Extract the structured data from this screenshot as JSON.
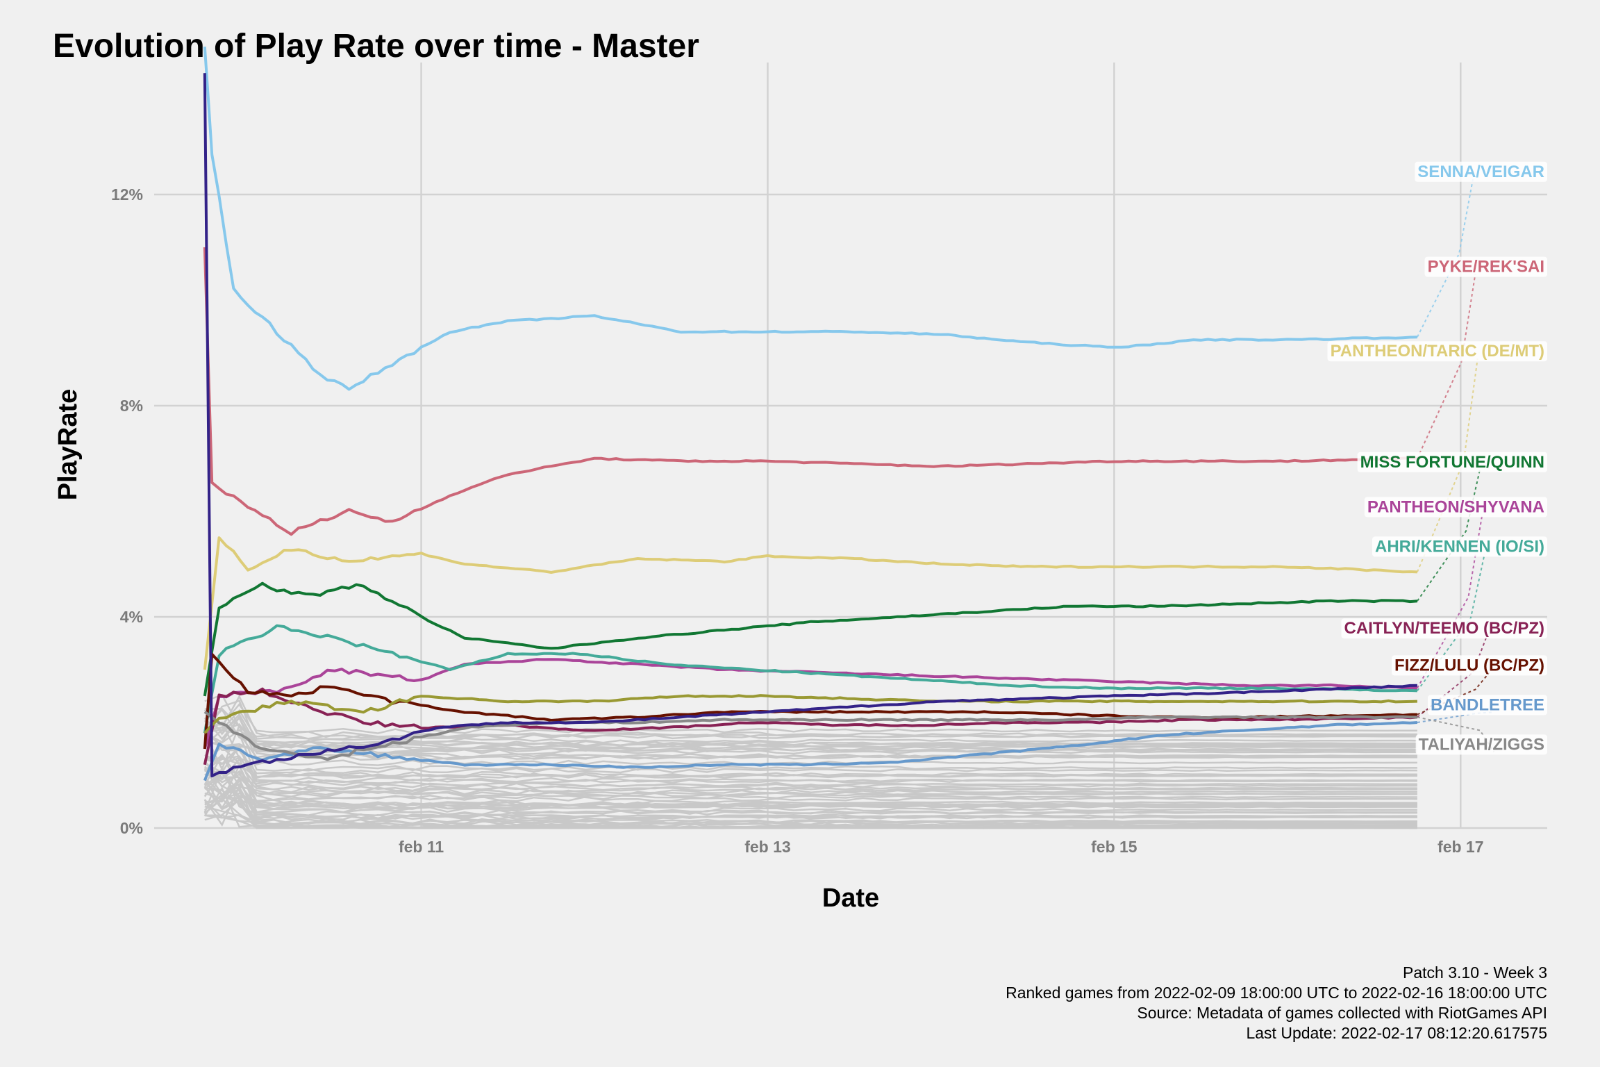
{
  "chart_data": {
    "type": "line",
    "title": "Evolution of Play Rate over time - Master",
    "xlabel": "Date",
    "ylabel": "PlayRate",
    "x_ticks": [
      {
        "date": "2022-02-11",
        "label": "feb 11"
      },
      {
        "date": "2022-02-13",
        "label": "feb 13"
      },
      {
        "date": "2022-02-15",
        "label": "feb 15"
      },
      {
        "date": "2022-02-17",
        "label": "feb 17"
      }
    ],
    "y_ticks": [
      {
        "value": 0,
        "label": "0%"
      },
      {
        "value": 4,
        "label": "4%"
      },
      {
        "value": 8,
        "label": "8%"
      },
      {
        "value": 12,
        "label": "12%"
      }
    ],
    "xlim": [
      "2022-02-09 11:00",
      "2022-02-17 12:00"
    ],
    "ylim": [
      0,
      14.5
    ],
    "grid": true,
    "legend": "direct labels at right end of lines",
    "background_series_color": "#c8c8c8",
    "series": [
      {
        "name": "SENNA/VEIGAR",
        "color": "#86c8ec",
        "label_y": 12.45,
        "start": 14.8,
        "points": [
          [
            "2022-02-09 18:00",
            14.8
          ],
          [
            "2022-02-09 19:00",
            12.8
          ],
          [
            "2022-02-09 22:00",
            10.2
          ],
          [
            "2022-02-10 04:00",
            9.4
          ],
          [
            "2022-02-10 10:00",
            8.6
          ],
          [
            "2022-02-10 14:00",
            8.3
          ],
          [
            "2022-02-10 20:00",
            8.8
          ],
          [
            "2022-02-11 04:00",
            9.4
          ],
          [
            "2022-02-11 12:00",
            9.6
          ],
          [
            "2022-02-12 00:00",
            9.7
          ],
          [
            "2022-02-12 12:00",
            9.4
          ],
          [
            "2022-02-13 00:00",
            9.4
          ],
          [
            "2022-02-13 12:00",
            9.4
          ],
          [
            "2022-02-14 00:00",
            9.35
          ],
          [
            "2022-02-14 12:00",
            9.2
          ],
          [
            "2022-02-15 00:00",
            9.1
          ],
          [
            "2022-02-15 12:00",
            9.25
          ],
          [
            "2022-02-16 00:00",
            9.25
          ],
          [
            "2022-02-16 18:00",
            9.3
          ]
        ]
      },
      {
        "name": "PYKE/REK'SAI",
        "color": "#cc6677",
        "label_y": 10.65,
        "start": 11.0,
        "points": [
          [
            "2022-02-09 18:00",
            11.0
          ],
          [
            "2022-02-09 19:00",
            6.5
          ],
          [
            "2022-02-10 00:00",
            6.1
          ],
          [
            "2022-02-10 06:00",
            5.6
          ],
          [
            "2022-02-10 14:00",
            6.0
          ],
          [
            "2022-02-10 20:00",
            5.8
          ],
          [
            "2022-02-11 04:00",
            6.3
          ],
          [
            "2022-02-11 12:00",
            6.7
          ],
          [
            "2022-02-12 00:00",
            7.0
          ],
          [
            "2022-02-12 12:00",
            6.95
          ],
          [
            "2022-02-13 00:00",
            6.95
          ],
          [
            "2022-02-13 12:00",
            6.9
          ],
          [
            "2022-02-14 00:00",
            6.85
          ],
          [
            "2022-02-14 12:00",
            6.9
          ],
          [
            "2022-02-15 00:00",
            6.95
          ],
          [
            "2022-02-15 12:00",
            6.95
          ],
          [
            "2022-02-16 00:00",
            6.95
          ],
          [
            "2022-02-16 18:00",
            7.0
          ]
        ]
      },
      {
        "name": "PANTHEON/TARIC (DE/MT)",
        "color": "#ddcc77",
        "label_y": 9.05,
        "start": 3.0,
        "points": [
          [
            "2022-02-09 18:00",
            3.0
          ],
          [
            "2022-02-09 20:00",
            5.5
          ],
          [
            "2022-02-10 00:00",
            4.9
          ],
          [
            "2022-02-10 06:00",
            5.3
          ],
          [
            "2022-02-10 14:00",
            5.05
          ],
          [
            "2022-02-11 00:00",
            5.2
          ],
          [
            "2022-02-11 06:00",
            5.0
          ],
          [
            "2022-02-11 18:00",
            4.85
          ],
          [
            "2022-02-12 06:00",
            5.1
          ],
          [
            "2022-02-12 18:00",
            5.05
          ],
          [
            "2022-02-13 00:00",
            5.15
          ],
          [
            "2022-02-13 12:00",
            5.1
          ],
          [
            "2022-02-14 00:00",
            5.0
          ],
          [
            "2022-02-14 12:00",
            4.95
          ],
          [
            "2022-02-15 00:00",
            4.95
          ],
          [
            "2022-02-15 12:00",
            4.95
          ],
          [
            "2022-02-16 00:00",
            4.95
          ],
          [
            "2022-02-16 18:00",
            4.85
          ]
        ]
      },
      {
        "name": "MISS FORTUNE/QUINN",
        "color": "#117733",
        "label_y": 6.95,
        "start": 2.5,
        "points": [
          [
            "2022-02-09 18:00",
            2.5
          ],
          [
            "2022-02-09 20:00",
            4.2
          ],
          [
            "2022-02-10 02:00",
            4.6
          ],
          [
            "2022-02-10 08:00",
            4.4
          ],
          [
            "2022-02-10 16:00",
            4.6
          ],
          [
            "2022-02-11 00:00",
            4.0
          ],
          [
            "2022-02-11 06:00",
            3.6
          ],
          [
            "2022-02-11 18:00",
            3.4
          ],
          [
            "2022-02-12 06:00",
            3.6
          ],
          [
            "2022-02-12 18:00",
            3.75
          ],
          [
            "2022-02-13 06:00",
            3.9
          ],
          [
            "2022-02-13 18:00",
            4.0
          ],
          [
            "2022-02-14 06:00",
            4.1
          ],
          [
            "2022-02-14 18:00",
            4.2
          ],
          [
            "2022-02-15 06:00",
            4.2
          ],
          [
            "2022-02-15 18:00",
            4.25
          ],
          [
            "2022-02-16 06:00",
            4.3
          ],
          [
            "2022-02-16 18:00",
            4.3
          ]
        ]
      },
      {
        "name": "PANTHEON/SHYVANA",
        "color": "#aa4499",
        "label_y": 6.1,
        "start": 1.5,
        "points": [
          [
            "2022-02-09 18:00",
            1.5
          ],
          [
            "2022-02-09 20:00",
            2.5
          ],
          [
            "2022-02-10 04:00",
            2.6
          ],
          [
            "2022-02-10 12:00",
            3.0
          ],
          [
            "2022-02-11 00:00",
            2.8
          ],
          [
            "2022-02-11 06:00",
            3.1
          ],
          [
            "2022-02-11 18:00",
            3.2
          ],
          [
            "2022-02-12 06:00",
            3.1
          ],
          [
            "2022-02-12 18:00",
            3.0
          ],
          [
            "2022-02-13 06:00",
            2.95
          ],
          [
            "2022-02-13 18:00",
            2.9
          ],
          [
            "2022-02-14 06:00",
            2.85
          ],
          [
            "2022-02-14 18:00",
            2.8
          ],
          [
            "2022-02-15 06:00",
            2.75
          ],
          [
            "2022-02-15 18:00",
            2.7
          ],
          [
            "2022-02-16 06:00",
            2.7
          ],
          [
            "2022-02-16 18:00",
            2.65
          ]
        ]
      },
      {
        "name": "AHRI/KENNEN (IO/SI)",
        "color": "#44aa99",
        "label_y": 5.35,
        "start": 1.8,
        "points": [
          [
            "2022-02-09 18:00",
            1.8
          ],
          [
            "2022-02-09 20:00",
            3.3
          ],
          [
            "2022-02-10 04:00",
            3.8
          ],
          [
            "2022-02-10 12:00",
            3.6
          ],
          [
            "2022-02-10 20:00",
            3.3
          ],
          [
            "2022-02-11 04:00",
            3.0
          ],
          [
            "2022-02-11 12:00",
            3.3
          ],
          [
            "2022-02-11 22:00",
            3.3
          ],
          [
            "2022-02-12 10:00",
            3.1
          ],
          [
            "2022-02-12 22:00",
            3.0
          ],
          [
            "2022-02-13 10:00",
            2.9
          ],
          [
            "2022-02-13 22:00",
            2.8
          ],
          [
            "2022-02-14 10:00",
            2.7
          ],
          [
            "2022-02-14 22:00",
            2.65
          ],
          [
            "2022-02-15 10:00",
            2.65
          ],
          [
            "2022-02-15 22:00",
            2.65
          ],
          [
            "2022-02-16 18:00",
            2.6
          ]
        ]
      },
      {
        "name": "CAITLYN/TEEMO (BC/PZ)",
        "color": "#882255",
        "label_y": 3.8,
        "start": 1.2,
        "points": [
          [
            "2022-02-09 18:00",
            1.2
          ],
          [
            "2022-02-09 20:00",
            2.5
          ],
          [
            "2022-02-10 02:00",
            2.6
          ],
          [
            "2022-02-10 08:00",
            2.3
          ],
          [
            "2022-02-10 16:00",
            2.0
          ],
          [
            "2022-02-11 00:00",
            1.9
          ],
          [
            "2022-02-11 12:00",
            1.95
          ],
          [
            "2022-02-11 22:00",
            1.85
          ],
          [
            "2022-02-12 10:00",
            1.9
          ],
          [
            "2022-02-12 22:00",
            2.0
          ],
          [
            "2022-02-13 10:00",
            1.95
          ],
          [
            "2022-02-13 22:00",
            1.95
          ],
          [
            "2022-02-14 10:00",
            2.0
          ],
          [
            "2022-02-14 22:00",
            2.0
          ],
          [
            "2022-02-15 10:00",
            2.05
          ],
          [
            "2022-02-15 22:00",
            2.05
          ],
          [
            "2022-02-16 18:00",
            2.1
          ]
        ]
      },
      {
        "name": "FIZZ/LULU (BC/PZ)",
        "color": "#661100",
        "label_y": 3.1,
        "start": 1.5,
        "points": [
          [
            "2022-02-09 18:00",
            1.5
          ],
          [
            "2022-02-09 19:00",
            3.3
          ],
          [
            "2022-02-10 00:00",
            2.6
          ],
          [
            "2022-02-10 06:00",
            2.5
          ],
          [
            "2022-02-10 12:00",
            2.7
          ],
          [
            "2022-02-10 20:00",
            2.4
          ],
          [
            "2022-02-11 06:00",
            2.2
          ],
          [
            "2022-02-11 18:00",
            2.05
          ],
          [
            "2022-02-12 06:00",
            2.1
          ],
          [
            "2022-02-12 18:00",
            2.2
          ],
          [
            "2022-02-13 06:00",
            2.2
          ],
          [
            "2022-02-13 18:00",
            2.2
          ],
          [
            "2022-02-14 06:00",
            2.2
          ],
          [
            "2022-02-14 18:00",
            2.15
          ],
          [
            "2022-02-15 06:00",
            2.1
          ],
          [
            "2022-02-15 18:00",
            2.1
          ],
          [
            "2022-02-16 18:00",
            2.15
          ]
        ]
      },
      {
        "name": "BANDLETREE",
        "color": "#6699cc",
        "label_y": 2.35,
        "start": 0.9,
        "points": [
          [
            "2022-02-09 18:00",
            0.9
          ],
          [
            "2022-02-09 20:00",
            1.6
          ],
          [
            "2022-02-10 02:00",
            1.3
          ],
          [
            "2022-02-10 10:00",
            1.5
          ],
          [
            "2022-02-10 20:00",
            1.35
          ],
          [
            "2022-02-11 06:00",
            1.2
          ],
          [
            "2022-02-11 18:00",
            1.2
          ],
          [
            "2022-02-12 06:00",
            1.15
          ],
          [
            "2022-02-12 18:00",
            1.2
          ],
          [
            "2022-02-13 06:00",
            1.2
          ],
          [
            "2022-02-13 18:00",
            1.25
          ],
          [
            "2022-02-14 06:00",
            1.4
          ],
          [
            "2022-02-14 18:00",
            1.55
          ],
          [
            "2022-02-15 06:00",
            1.75
          ],
          [
            "2022-02-15 18:00",
            1.85
          ],
          [
            "2022-02-16 06:00",
            1.95
          ],
          [
            "2022-02-16 18:00",
            2.0
          ]
        ]
      },
      {
        "name": "TALIYAH/ZIGGS",
        "color": "#888888",
        "label_y": 1.6,
        "start": 2.2,
        "points": [
          [
            "2022-02-09 18:00",
            2.2
          ],
          [
            "2022-02-09 20:00",
            2.0
          ],
          [
            "2022-02-10 02:00",
            1.5
          ],
          [
            "2022-02-10 10:00",
            1.3
          ],
          [
            "2022-02-10 20:00",
            1.6
          ],
          [
            "2022-02-11 06:00",
            1.9
          ],
          [
            "2022-02-11 18:00",
            2.0
          ],
          [
            "2022-02-12 06:00",
            2.0
          ],
          [
            "2022-02-12 18:00",
            2.05
          ],
          [
            "2022-02-13 06:00",
            2.05
          ],
          [
            "2022-02-13 18:00",
            2.05
          ],
          [
            "2022-02-14 06:00",
            2.05
          ],
          [
            "2022-02-14 18:00",
            2.05
          ],
          [
            "2022-02-15 06:00",
            2.1
          ],
          [
            "2022-02-15 18:00",
            2.1
          ],
          [
            "2022-02-16 18:00",
            2.1
          ]
        ]
      },
      {
        "name": "",
        "color": "#999933",
        "label_y": null,
        "start": 1.8,
        "points": [
          [
            "2022-02-09 18:00",
            1.8
          ],
          [
            "2022-02-09 20:00",
            2.1
          ],
          [
            "2022-02-10 06:00",
            2.4
          ],
          [
            "2022-02-10 16:00",
            2.2
          ],
          [
            "2022-02-11 00:00",
            2.5
          ],
          [
            "2022-02-11 12:00",
            2.4
          ],
          [
            "2022-02-12 00:00",
            2.4
          ],
          [
            "2022-02-12 12:00",
            2.5
          ],
          [
            "2022-02-13 00:00",
            2.5
          ],
          [
            "2022-02-13 12:00",
            2.45
          ],
          [
            "2022-02-14 00:00",
            2.4
          ],
          [
            "2022-02-14 12:00",
            2.4
          ],
          [
            "2022-02-15 00:00",
            2.4
          ],
          [
            "2022-02-15 12:00",
            2.4
          ],
          [
            "2022-02-16 18:00",
            2.4
          ]
        ]
      },
      {
        "name": "",
        "color": "#332288",
        "label_y": null,
        "start": 14.3,
        "points": [
          [
            "2022-02-09 18:00",
            14.3
          ],
          [
            "2022-02-09 19:00",
            1.0
          ],
          [
            "2022-02-10 00:00",
            1.2
          ],
          [
            "2022-02-10 08:00",
            1.4
          ],
          [
            "2022-02-10 18:00",
            1.6
          ],
          [
            "2022-02-11 02:00",
            1.9
          ],
          [
            "2022-02-11 12:00",
            2.0
          ],
          [
            "2022-02-12 00:00",
            2.0
          ],
          [
            "2022-02-12 12:00",
            2.1
          ],
          [
            "2022-02-13 00:00",
            2.2
          ],
          [
            "2022-02-13 12:00",
            2.3
          ],
          [
            "2022-02-14 00:00",
            2.4
          ],
          [
            "2022-02-14 12:00",
            2.45
          ],
          [
            "2022-02-15 00:00",
            2.5
          ],
          [
            "2022-02-15 12:00",
            2.55
          ],
          [
            "2022-02-16 00:00",
            2.6
          ],
          [
            "2022-02-16 18:00",
            2.7
          ]
        ]
      }
    ]
  },
  "caption": {
    "lines": [
      "Patch 3.10 - Week 3",
      "Ranked games from 2022-02-09 18:00:00 UTC to 2022-02-16 18:00:00 UTC",
      "Source: Metadata of games collected with RiotGames API",
      "Last Update: 2022-02-17 08:12:20.617575"
    ]
  }
}
